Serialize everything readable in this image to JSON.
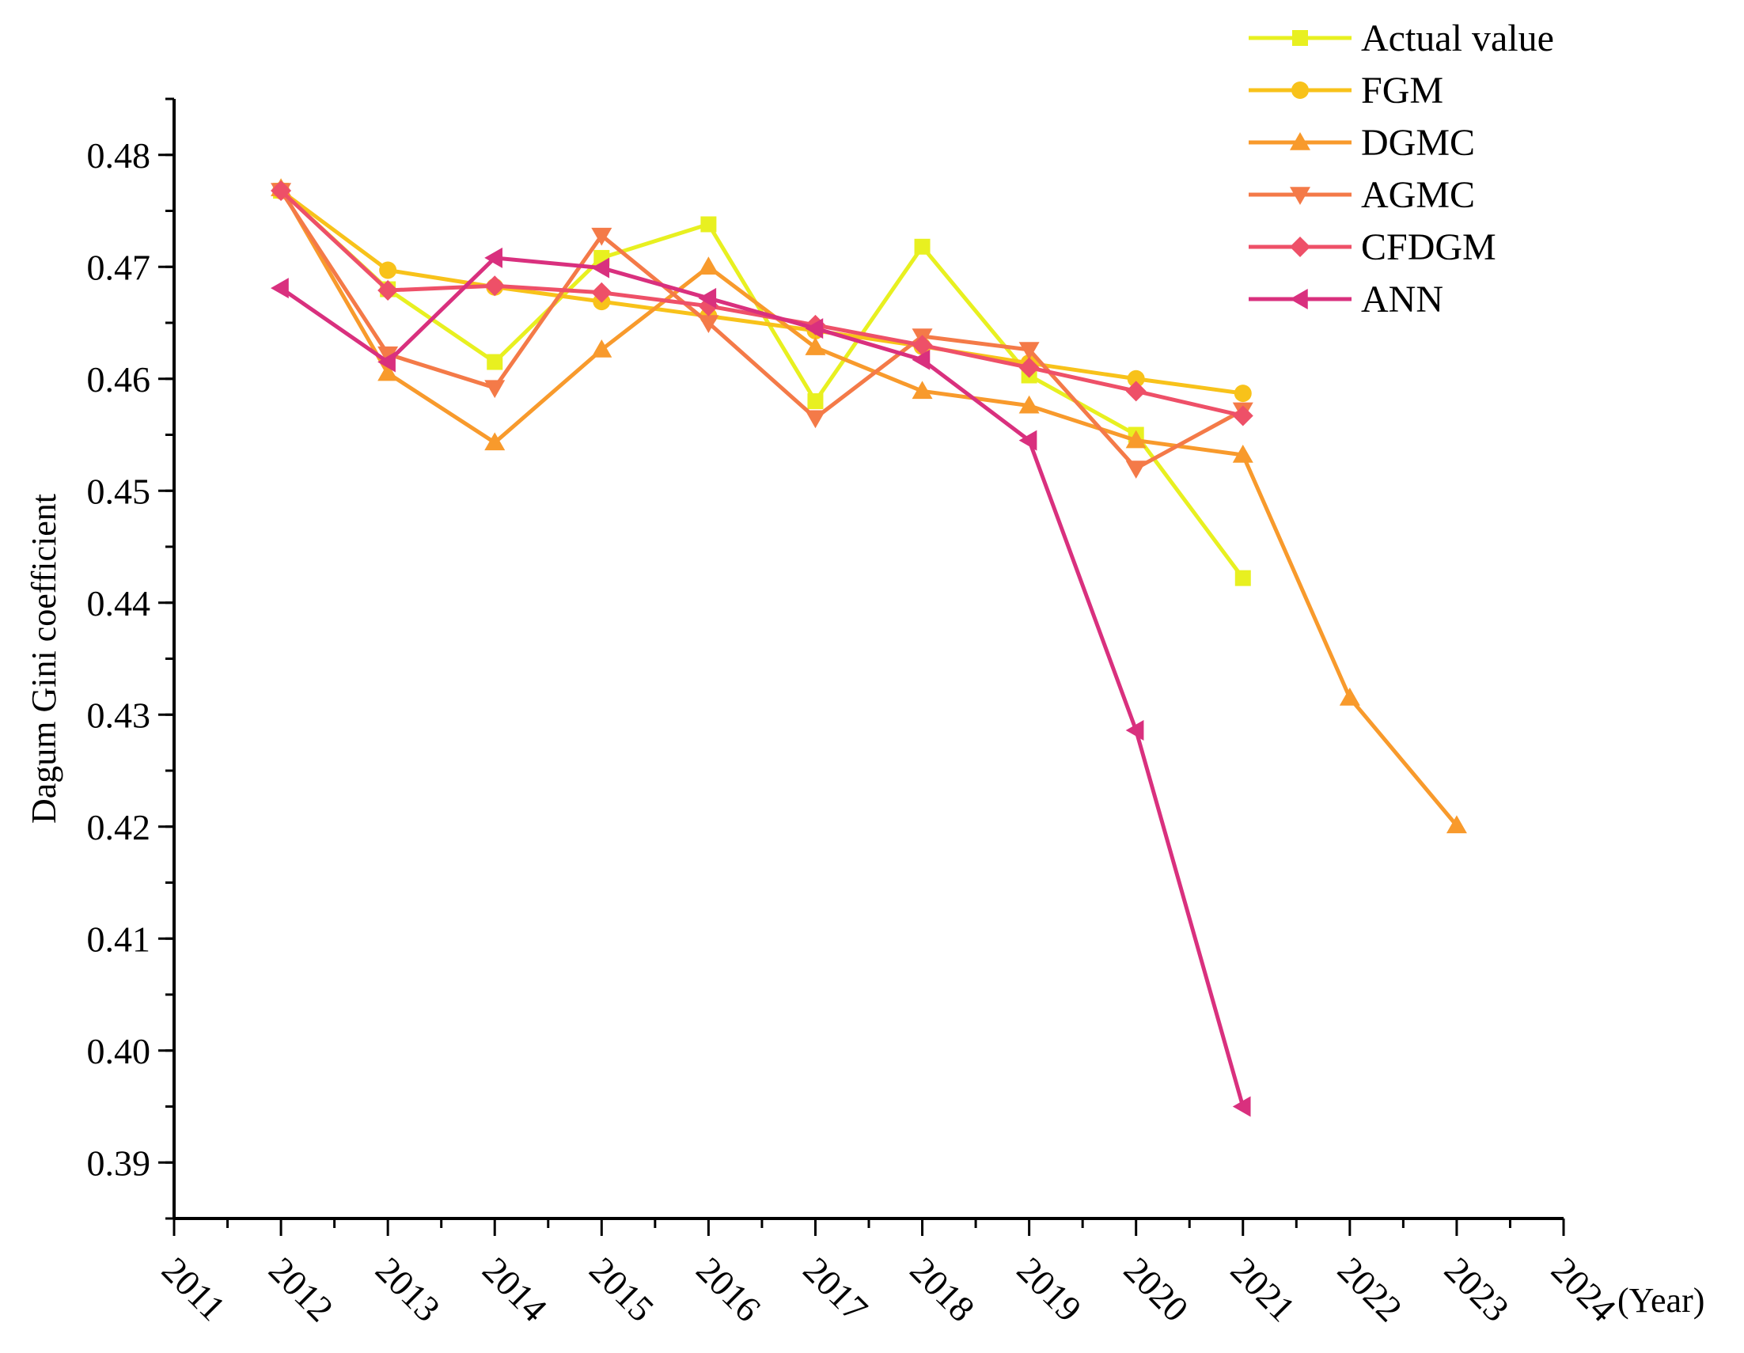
{
  "chart_data": {
    "type": "line",
    "xlabel": "(Year)",
    "ylabel": "Dagum Gini coefficient",
    "xlim": [
      2011,
      2024
    ],
    "ylim": [
      0.385,
      0.485
    ],
    "xticks": [
      "2011",
      "2012",
      "2013",
      "2014",
      "2015",
      "2016",
      "2017",
      "2018",
      "2019",
      "2020",
      "2021",
      "2022",
      "2023",
      "2024"
    ],
    "yticks": [
      "0.39",
      "0.40",
      "0.41",
      "0.42",
      "0.43",
      "0.44",
      "0.45",
      "0.46",
      "0.47",
      "0.48"
    ],
    "legend_position": "top-right",
    "grid": false,
    "series": [
      {
        "name": "Actual value",
        "color": "#e8f020",
        "marker": "square",
        "x": [
          2012,
          2013,
          2014,
          2015,
          2016,
          2017,
          2018,
          2019,
          2020,
          2021
        ],
        "y": [
          0.4768,
          0.468,
          0.4615,
          0.4708,
          0.4738,
          0.458,
          0.4718,
          0.4603,
          0.455,
          0.4422
        ]
      },
      {
        "name": "FGM",
        "color": "#f8c21a",
        "marker": "circle",
        "x": [
          2012,
          2013,
          2014,
          2015,
          2016,
          2017,
          2018,
          2019,
          2020,
          2021
        ],
        "y": [
          0.4768,
          0.4697,
          0.4682,
          0.4669,
          0.4656,
          0.4643,
          0.4629,
          0.4614,
          0.46,
          0.4587
        ]
      },
      {
        "name": "DGMC",
        "color": "#f89a2c",
        "marker": "triangle-up",
        "x": [
          2012,
          2013,
          2014,
          2015,
          2016,
          2017,
          2018,
          2019,
          2020,
          2021,
          2022,
          2023
        ],
        "y": [
          0.477,
          0.4605,
          0.4543,
          0.4626,
          0.47,
          0.4628,
          0.4589,
          0.4576,
          0.4545,
          0.4532,
          0.4315,
          0.4201
        ]
      },
      {
        "name": "AGMC",
        "color": "#f47a48",
        "marker": "triangle-down",
        "x": [
          2012,
          2013,
          2014,
          2015,
          2016,
          2017,
          2018,
          2019,
          2020,
          2021
        ],
        "y": [
          0.4768,
          0.4622,
          0.4592,
          0.4728,
          0.465,
          0.4565,
          0.4638,
          0.4626,
          0.452,
          0.4572
        ]
      },
      {
        "name": "CFDGM",
        "color": "#ee5068",
        "marker": "diamond",
        "x": [
          2012,
          2013,
          2014,
          2015,
          2016,
          2017,
          2018,
          2019,
          2020,
          2021
        ],
        "y": [
          0.4768,
          0.4679,
          0.4683,
          0.4677,
          0.4665,
          0.4648,
          0.463,
          0.461,
          0.4589,
          0.4567
        ]
      },
      {
        "name": "ANN",
        "color": "#d9307e",
        "marker": "triangle-left",
        "x": [
          2012,
          2013,
          2014,
          2015,
          2016,
          2017,
          2018,
          2019,
          2020,
          2021
        ],
        "y": [
          0.4681,
          0.4615,
          0.4708,
          0.4699,
          0.4672,
          0.4645,
          0.4617,
          0.4545,
          0.4286,
          0.395
        ]
      }
    ]
  }
}
